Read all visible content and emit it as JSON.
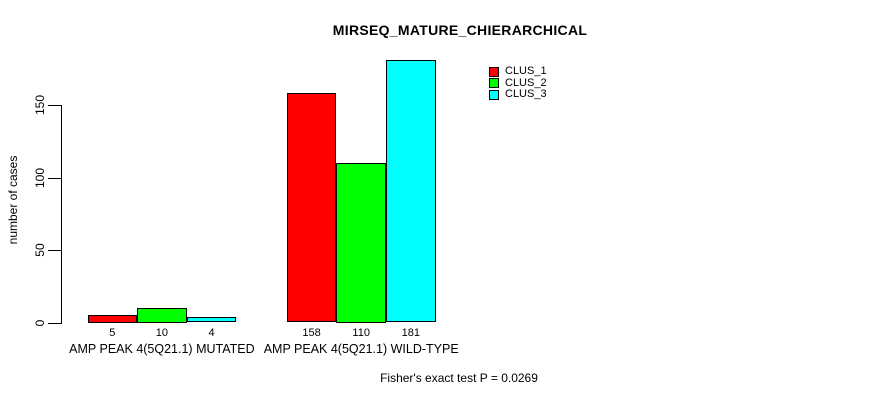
{
  "title": "MIRSEQ_MATURE_CHIERARCHICAL",
  "footer": "Fisher's exact test P = 0.0269",
  "colors": {
    "clus_1": "#FF0000",
    "clus_2": "#00FF00",
    "clus_3": "#00FFFF",
    "axis": "#000000",
    "background": "#FFFFFF"
  },
  "chart_data": {
    "type": "bar",
    "title": "MIRSEQ_MATURE_CHIERARCHICAL",
    "categories": [
      "AMP PEAK 4(5Q21.1) MUTATED",
      "AMP PEAK 4(5Q21.1) WILD-TYPE"
    ],
    "series": [
      {
        "name": "CLUS_1",
        "color": "#FF0000",
        "values": [
          5,
          158
        ]
      },
      {
        "name": "CLUS_2",
        "color": "#00FF00",
        "values": [
          10,
          110
        ]
      },
      {
        "name": "CLUS_3",
        "color": "#00FFFF",
        "values": [
          4,
          181
        ]
      }
    ],
    "bar_value_labels": [
      [
        "5",
        "10",
        "4"
      ],
      [
        "158",
        "110",
        "181"
      ]
    ],
    "xlabel": "",
    "ylabel": "number of cases",
    "yticks": [
      0,
      50,
      100,
      150
    ],
    "ylim": [
      0,
      190
    ],
    "grid": false,
    "legend_position": "top-right",
    "annotation": "Fisher's exact test P = 0.0269"
  }
}
